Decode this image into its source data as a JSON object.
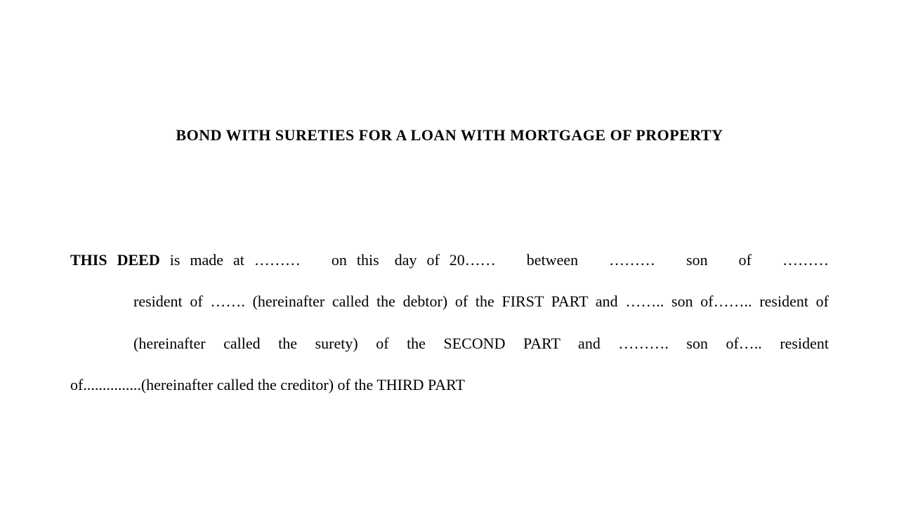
{
  "document": {
    "title": "BOND WITH SURETIES FOR A LOAN WITH MORTGAGE OF PROPERTY",
    "intro_bold": "THIS DEED",
    "line1_rest": " is made at ………  on this day of  20……  between  ………  son  of  ………",
    "line2": "resident of …….   (hereinafter called the debtor) of the FIRST PART and ……..  son of……..   resident of",
    "line3": "(hereinafter   called   the   surety)   of   the   SECOND   PART   and   ……….   son   of…..   resident",
    "line4": "of...............(hereinafter called the creditor) of the THIRD PART"
  }
}
